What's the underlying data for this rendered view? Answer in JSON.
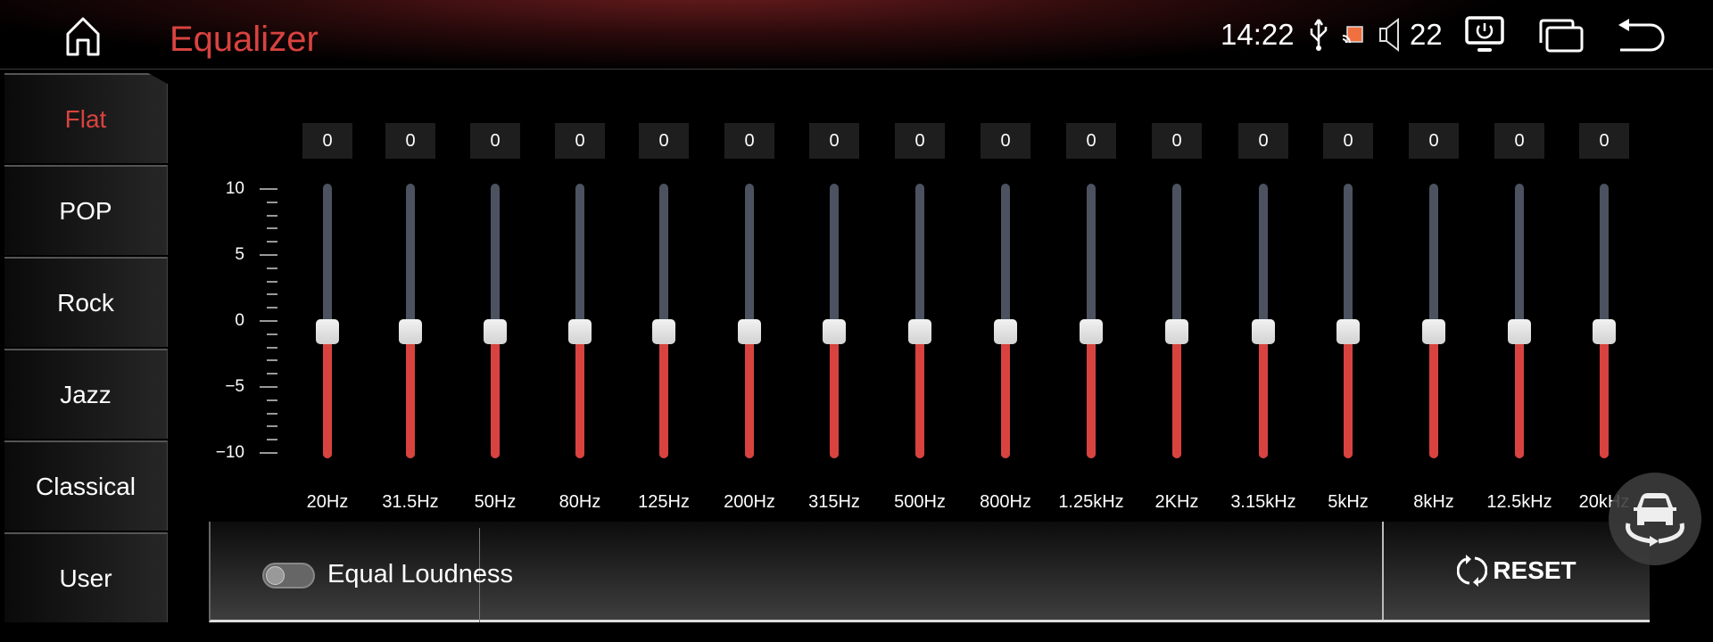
{
  "header": {
    "title": "Equalizer",
    "time": "14:22",
    "volume": "22"
  },
  "colors": {
    "accent": "#d9433f",
    "track": "#4c5260",
    "cast_icon": "#f07040"
  },
  "icons": [
    "home-icon",
    "usb-icon",
    "cast-icon",
    "speaker-icon",
    "power-monitor-icon",
    "multi-window-icon",
    "back-icon",
    "refresh-icon",
    "car-360-icon"
  ],
  "sidebar": {
    "items": [
      {
        "label": "Flat",
        "active": true
      },
      {
        "label": "POP"
      },
      {
        "label": "Rock"
      },
      {
        "label": "Jazz"
      },
      {
        "label": "Classical"
      },
      {
        "label": "User"
      }
    ]
  },
  "equalizer": {
    "scale": {
      "min": -10,
      "max": 10,
      "labels": [
        "10",
        "5",
        "0",
        "−5",
        "−10"
      ]
    },
    "bands": [
      {
        "freq": "20Hz",
        "value": 0
      },
      {
        "freq": "31.5Hz",
        "value": 0
      },
      {
        "freq": "50Hz",
        "value": 0
      },
      {
        "freq": "80Hz",
        "value": 0
      },
      {
        "freq": "125Hz",
        "value": 0
      },
      {
        "freq": "200Hz",
        "value": 0
      },
      {
        "freq": "315Hz",
        "value": 0
      },
      {
        "freq": "500Hz",
        "value": 0
      },
      {
        "freq": "800Hz",
        "value": 0
      },
      {
        "freq": "1.25kHz",
        "value": 0
      },
      {
        "freq": "2KHz",
        "value": 0
      },
      {
        "freq": "3.15kHz",
        "value": 0
      },
      {
        "freq": "5kHz",
        "value": 0
      },
      {
        "freq": "8kHz",
        "value": 0
      },
      {
        "freq": "12.5kHz",
        "value": 0
      },
      {
        "freq": "20kHz",
        "value": 0
      }
    ]
  },
  "bottom": {
    "equal_loudness_label": "Equal Loudness",
    "equal_loudness_on": false,
    "reset_label": "RESET"
  }
}
